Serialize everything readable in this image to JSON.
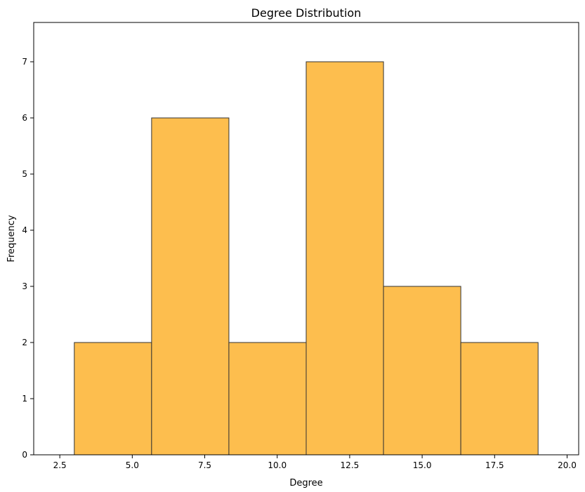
{
  "chart_data": {
    "type": "bar",
    "title": "Degree Distribution",
    "xlabel": "Degree",
    "ylabel": "Frequency",
    "bins": [
      {
        "start": 3.0,
        "end": 5.6667,
        "count": 2
      },
      {
        "start": 5.6667,
        "end": 8.3333,
        "count": 6
      },
      {
        "start": 8.3333,
        "end": 11.0,
        "count": 2
      },
      {
        "start": 11.0,
        "end": 13.6667,
        "count": 7
      },
      {
        "start": 13.6667,
        "end": 16.3333,
        "count": 3
      },
      {
        "start": 16.3333,
        "end": 19.0,
        "count": 2
      }
    ],
    "xlim": [
      1.6,
      20.4
    ],
    "ylim": [
      0,
      7.7
    ],
    "xticks": [
      "2.5",
      "5.0",
      "7.5",
      "10.0",
      "12.5",
      "15.0",
      "17.5",
      "20.0"
    ],
    "yticks": [
      "0",
      "1",
      "2",
      "3",
      "4",
      "5",
      "6",
      "7"
    ],
    "grid": false,
    "legend": false,
    "colors": {
      "bar_fill": "#FDBE4E",
      "bar_edge": "#333333",
      "axis": "#000000"
    }
  }
}
